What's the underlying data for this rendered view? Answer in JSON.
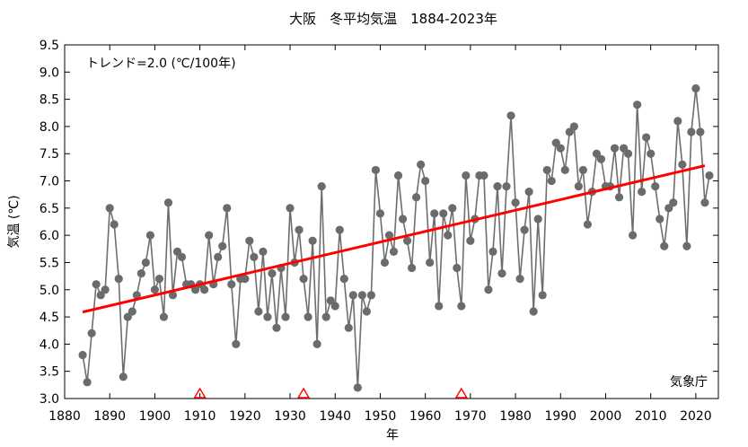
{
  "chart_data": {
    "type": "line",
    "title": "大阪　冬平均気温　1884-2023年",
    "xlabel": "年",
    "ylabel": "気温 (℃)",
    "trend_label": "トレンド=2.0 (℃/100年)",
    "source_label": "気象庁",
    "xlim": [
      1880,
      2025
    ],
    "ylim": [
      3.0,
      9.5
    ],
    "x_ticks": [
      "1880",
      "1890",
      "1900",
      "1910",
      "1920",
      "1930",
      "1940",
      "1950",
      "1960",
      "1970",
      "1980",
      "1990",
      "2000",
      "2010",
      "2020"
    ],
    "y_ticks": [
      "3.0",
      "3.5",
      "4.0",
      "4.5",
      "5.0",
      "5.5",
      "6.0",
      "6.5",
      "7.0",
      "7.5",
      "8.0",
      "8.5",
      "9.0",
      "9.5"
    ],
    "grid": false,
    "series": [
      {
        "x": [
          1884,
          1885,
          1886,
          1887,
          1888,
          1889,
          1890,
          1891,
          1892,
          1893,
          1894,
          1895,
          1896,
          1897,
          1898,
          1899,
          1900,
          1901,
          1902,
          1903,
          1904,
          1905,
          1906,
          1907,
          1908,
          1909,
          1910,
          1911,
          1912,
          1913,
          1914,
          1915,
          1916,
          1917,
          1918,
          1919,
          1920,
          1921,
          1922,
          1923,
          1924,
          1925,
          1926,
          1927,
          1928,
          1929,
          1930,
          1931,
          1932,
          1933,
          1934,
          1935,
          1936,
          1937,
          1938,
          1939,
          1940,
          1941,
          1942,
          1943,
          1944,
          1945,
          1946,
          1947,
          1948,
          1949,
          1950,
          1951,
          1952,
          1953,
          1954,
          1955,
          1956,
          1957,
          1958,
          1959,
          1960,
          1961,
          1962,
          1963,
          1964,
          1965,
          1966,
          1967,
          1968,
          1969,
          1970,
          1971,
          1972,
          1973,
          1974,
          1975,
          1976,
          1977,
          1978,
          1979,
          1980,
          1981,
          1982,
          1983,
          1984,
          1985,
          1986,
          1987,
          1988,
          1989,
          1990,
          1991,
          1992,
          1993,
          1994,
          1995,
          1996,
          1997,
          1998,
          1999,
          2000,
          2001,
          2002,
          2003,
          2004,
          2005,
          2006,
          2007,
          2008,
          2009,
          2010,
          2011,
          2012,
          2013,
          2014,
          2015,
          2016,
          2017,
          2018,
          2019,
          2020,
          2021,
          2022,
          2023
        ],
        "values": [
          3.8,
          3.3,
          4.2,
          5.1,
          4.9,
          5.0,
          6.5,
          6.2,
          5.2,
          3.4,
          4.5,
          4.6,
          4.9,
          5.3,
          5.5,
          6.0,
          5.0,
          5.2,
          4.5,
          6.6,
          4.9,
          5.7,
          5.6,
          5.1,
          5.1,
          5.0,
          5.1,
          5.0,
          6.0,
          5.1,
          5.6,
          5.8,
          6.5,
          5.1,
          4.0,
          5.2,
          5.2,
          5.9,
          5.6,
          4.6,
          5.7,
          4.5,
          5.3,
          4.3,
          5.4,
          4.5,
          6.5,
          5.5,
          6.1,
          5.2,
          4.5,
          5.9,
          4.0,
          6.9,
          4.5,
          4.8,
          4.7,
          6.1,
          5.2,
          4.3,
          4.9,
          3.2,
          4.9,
          4.6,
          4.9,
          7.2,
          6.4,
          5.5,
          6.0,
          5.7,
          7.1,
          6.3,
          5.9,
          5.4,
          6.7,
          7.3,
          7.0,
          5.5,
          6.4,
          4.7,
          6.4,
          6.0,
          6.5,
          5.4,
          4.7,
          7.1,
          5.9,
          6.3,
          7.1,
          7.1,
          5.0,
          5.7,
          6.9,
          5.3,
          6.9,
          8.2,
          6.6,
          5.2,
          6.1,
          6.8,
          4.6,
          6.3,
          4.9,
          7.2,
          7.0,
          7.7,
          7.6,
          7.2,
          7.9,
          8.0,
          6.9,
          7.2,
          6.2,
          6.8,
          7.5,
          7.4,
          6.9,
          6.9,
          7.6,
          6.7,
          7.6,
          7.5,
          6.0,
          8.4,
          6.8,
          7.8,
          7.5,
          6.9,
          6.3,
          5.8,
          6.5,
          6.6,
          8.1,
          7.3,
          5.8,
          7.9,
          8.7,
          7.9,
          6.6,
          7.1
        ]
      }
    ],
    "trend": {
      "x": [
        1884,
        2022
      ],
      "y": [
        4.59,
        7.28
      ]
    },
    "markers": {
      "x": [
        1910,
        1933,
        1968
      ],
      "y": 3.0
    },
    "colors": {
      "series": "#6e6e6e",
      "point": "#6b6b6b",
      "trend": "#ff0000",
      "marker": "#ff0000"
    }
  }
}
